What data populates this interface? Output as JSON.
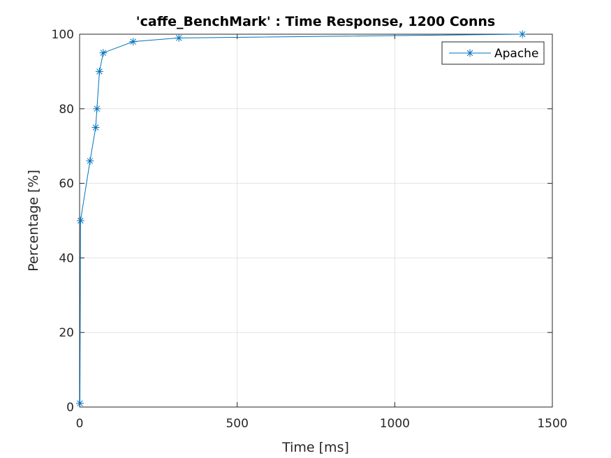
{
  "chart_data": {
    "type": "line",
    "title": "'caffe_BenchMark' : Time Response, 1200 Conns",
    "xlabel": "Time [ms]",
    "ylabel": "Percentage [%]",
    "xlim": [
      0,
      1500
    ],
    "ylim": [
      0,
      100
    ],
    "xticks": [
      0,
      500,
      1000,
      1500
    ],
    "yticks": [
      0,
      20,
      40,
      60,
      80,
      100
    ],
    "grid": true,
    "legend_position": "top-right",
    "series": [
      {
        "name": "Apache",
        "color": "#0072BD",
        "marker": "asterisk",
        "x": [
          1,
          3,
          33,
          51,
          55,
          63,
          75,
          170,
          315,
          1405
        ],
        "y": [
          1,
          50,
          66,
          75,
          80,
          90,
          95,
          98,
          99,
          100
        ]
      }
    ]
  }
}
